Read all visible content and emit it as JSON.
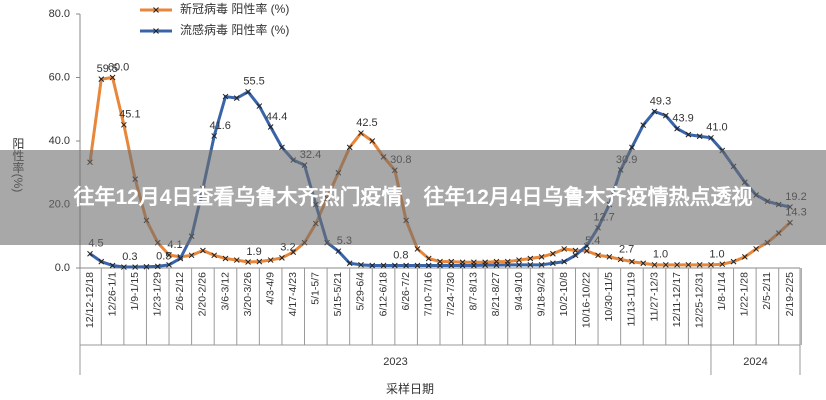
{
  "chart_data": {
    "type": "line",
    "y_label": "阳性率(%)",
    "x_label": "采样日期",
    "years": [
      "2023",
      "2024"
    ],
    "categories": [
      "12/12-12/18",
      null,
      "12/26-1/1",
      null,
      "1/9-1/15",
      null,
      "1/23-1/29",
      null,
      "2/6-2/12",
      null,
      "2/20-2/26",
      null,
      "3/6-3/12",
      null,
      "3/20-3/26",
      null,
      "4/3-4/9",
      null,
      "4/17-4/23",
      null,
      "5/1-5/7",
      null,
      "5/15-5/21",
      null,
      "5/29-6/4",
      null,
      "6/12-6/18",
      null,
      "6/26-7/2",
      null,
      "7/10-7/16",
      null,
      "7/24-7/30",
      null,
      "8/7-8/13",
      null,
      "8/21-8/27",
      null,
      "9/4-9/10",
      null,
      "9/18-9/24",
      null,
      "10/2-10/8",
      null,
      "10/16-10/22",
      null,
      "10/30-11/5",
      null,
      "11/13-11/19",
      null,
      "11/27-12/3",
      null,
      "12/11-12/17",
      null,
      "12/25-12/31",
      null,
      "1/8-1/14",
      null,
      "1/22-1/28",
      null,
      "2/5-2/11",
      null,
      "2/19-2/25"
    ],
    "series": [
      {
        "name": "新冠病毒 阳性率 (%)",
        "color": "#e8863a",
        "values": [
          33.3,
          59.5,
          60.0,
          45.1,
          28,
          15,
          8,
          4.1,
          3.5,
          4,
          5.5,
          4,
          3,
          2.5,
          1.9,
          2,
          2.5,
          3.2,
          5,
          8,
          14,
          22,
          30,
          38,
          42.5,
          40,
          35,
          30.8,
          15,
          6,
          3,
          2,
          2,
          1.8,
          1.8,
          1.8,
          2,
          2,
          2.5,
          3,
          3.5,
          4.5,
          6,
          5.5,
          5.4,
          4,
          3.5,
          2.7,
          2,
          1.5,
          1.0,
          1,
          1,
          1,
          1,
          1.0,
          1.2,
          2,
          3.5,
          6,
          8,
          11,
          14.3
        ],
        "value_labels": [
          null,
          "59.5",
          "60.0",
          "45.1",
          null,
          null,
          null,
          "4.1",
          null,
          null,
          null,
          null,
          null,
          null,
          "1.9",
          null,
          null,
          "3.2",
          null,
          null,
          null,
          null,
          null,
          null,
          "42.5",
          null,
          null,
          "30.8",
          null,
          null,
          null,
          null,
          null,
          null,
          null,
          null,
          null,
          null,
          null,
          null,
          null,
          null,
          null,
          null,
          "5.4",
          null,
          null,
          "2.7",
          null,
          null,
          "1.0",
          null,
          null,
          null,
          null,
          "1.0",
          null,
          null,
          null,
          null,
          null,
          null,
          "14.3"
        ]
      },
      {
        "name": "流感病毒 阳性率 (%)",
        "color": "#3a64a8",
        "values": [
          4.5,
          2,
          0.8,
          0.3,
          0.3,
          0.4,
          0.5,
          1,
          3,
          10,
          25,
          41.6,
          54,
          53.5,
          55.5,
          51,
          44.4,
          38,
          34,
          32.4,
          20,
          8,
          5.3,
          1.5,
          1,
          0.8,
          0.8,
          0.8,
          0.8,
          0.8,
          0.8,
          0.8,
          0.8,
          0.8,
          0.8,
          0.9,
          0.9,
          1,
          1,
          1,
          1,
          1.5,
          2,
          4,
          7,
          12.7,
          20,
          30.9,
          38,
          45,
          49.3,
          48,
          43.9,
          42,
          41.5,
          41.0,
          37,
          32,
          27,
          23,
          21,
          20,
          19.2
        ],
        "value_labels": [
          "4.5",
          null,
          null,
          "0.3",
          null,
          null,
          "0.5",
          null,
          null,
          null,
          null,
          "41.6",
          null,
          null,
          "55.5",
          null,
          "44.4",
          null,
          null,
          "32.4",
          null,
          null,
          "5.3",
          null,
          null,
          null,
          null,
          "0.8",
          null,
          null,
          null,
          null,
          null,
          null,
          null,
          null,
          null,
          null,
          null,
          null,
          null,
          null,
          null,
          null,
          null,
          "12.7",
          null,
          "30.9",
          null,
          null,
          "49.3",
          null,
          "43.9",
          null,
          null,
          "41.0",
          null,
          null,
          null,
          null,
          null,
          null,
          "19.2"
        ]
      }
    ],
    "ylim": [
      0,
      80
    ],
    "yticks": [
      {
        "value": 0,
        "label": "0.0"
      },
      {
        "value": 20,
        "label": "20.0"
      },
      {
        "value": 40,
        "label": "40.0"
      },
      {
        "value": 60,
        "label": "60.0"
      },
      {
        "value": 80,
        "label": "80.0"
      }
    ]
  },
  "overlay_title": "往年12月4日查看乌鲁木齐热门疫情，往年12月4日乌鲁木齐疫情热点透视"
}
